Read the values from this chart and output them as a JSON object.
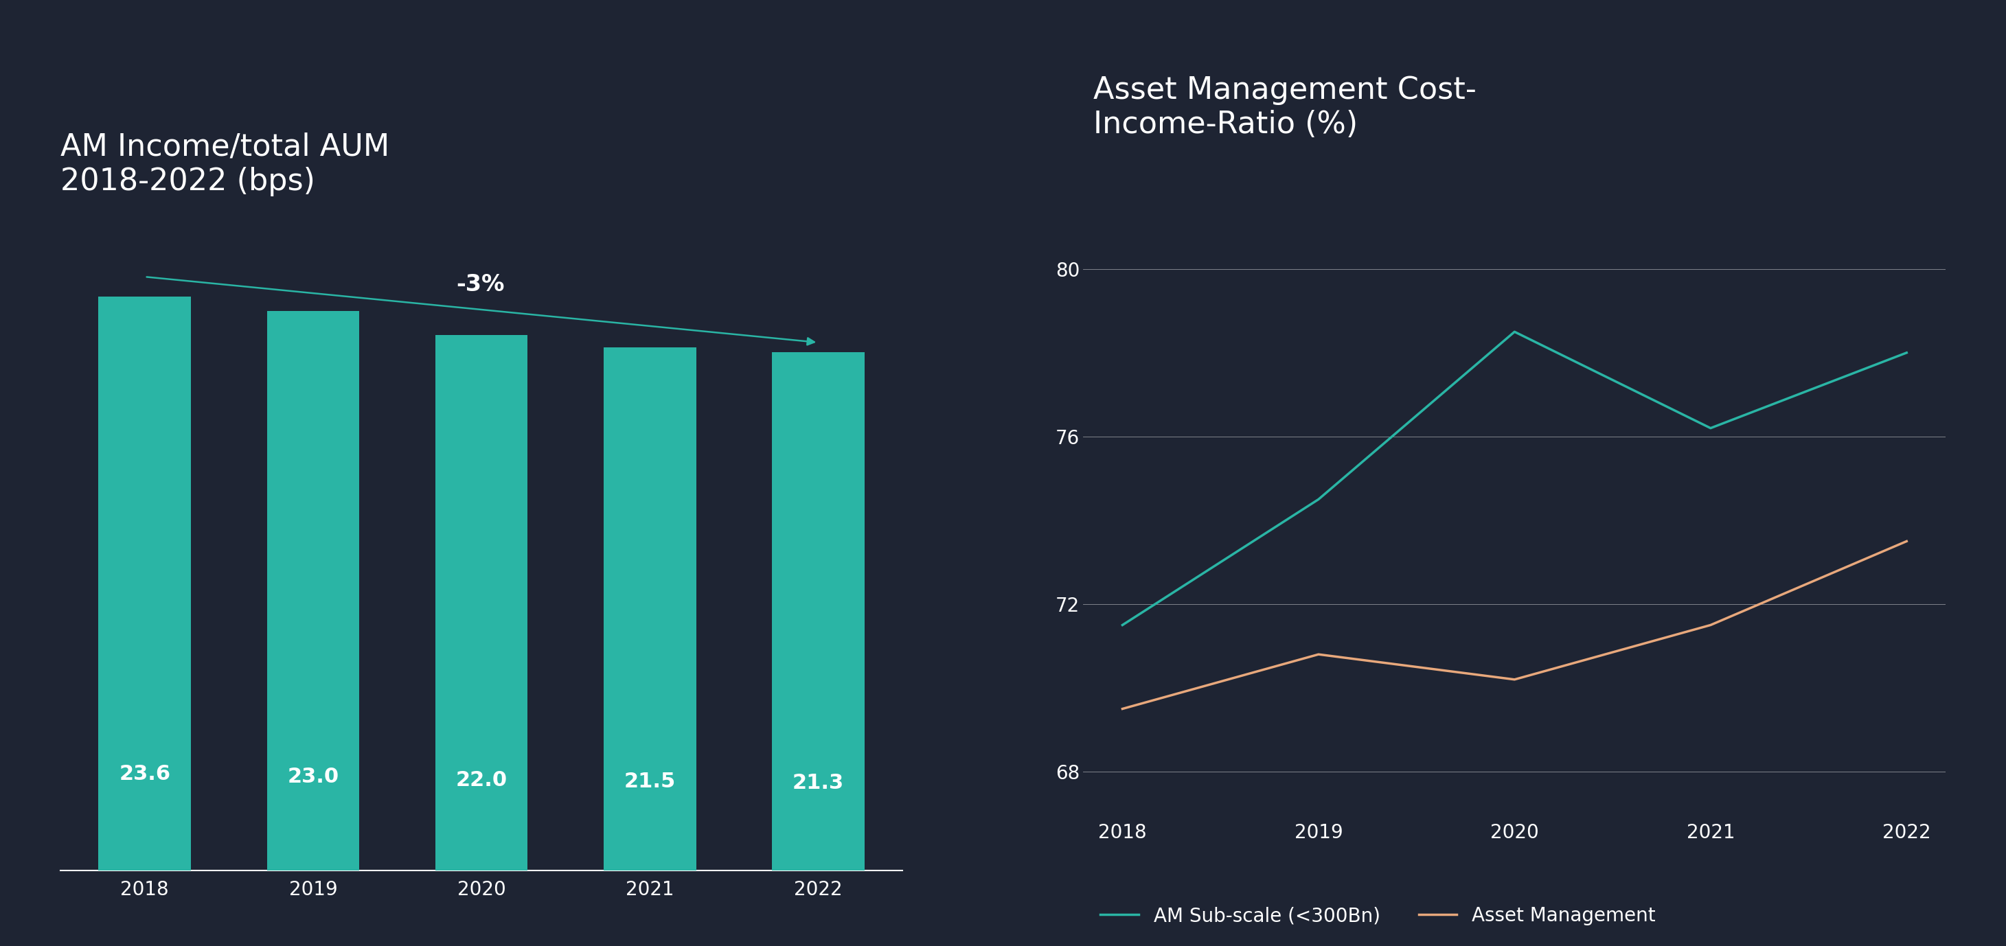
{
  "bg_color": "#1e2433",
  "bar_title": "AM Income/total AUM\n2018-2022 (bps)",
  "line_title": "Asset Management Cost-\nIncome-Ratio (%)",
  "bar_years": [
    "2018",
    "2019",
    "2020",
    "2021",
    "2022"
  ],
  "bar_values": [
    23.6,
    23.0,
    22.0,
    21.5,
    21.3
  ],
  "bar_color": "#2ab5a5",
  "bar_label_color": "#ffffff",
  "arrow_annotation": "-3%",
  "line_years": [
    2018,
    2019,
    2020,
    2021,
    2022
  ],
  "subscale_values": [
    71.5,
    74.5,
    78.5,
    76.2,
    78.0
  ],
  "asset_mgmt_values": [
    69.5,
    70.8,
    70.2,
    71.5,
    73.5
  ],
  "teal_color": "#2ab5a5",
  "orange_color": "#e8a87c",
  "line_yticks": [
    68,
    72,
    76,
    80
  ],
  "line_ylim": [
    67,
    81
  ],
  "title_fontsize": 32,
  "bar_label_fontsize": 22,
  "tick_fontsize": 20,
  "legend_fontsize": 20,
  "annotation_fontsize": 24,
  "axis_label_color": "#ffffff",
  "tick_color": "#ffffff",
  "grid_color": "#ffffff",
  "legend_teal_label": "AM Sub-scale (<300Bn)",
  "legend_orange_label": "Asset Management"
}
